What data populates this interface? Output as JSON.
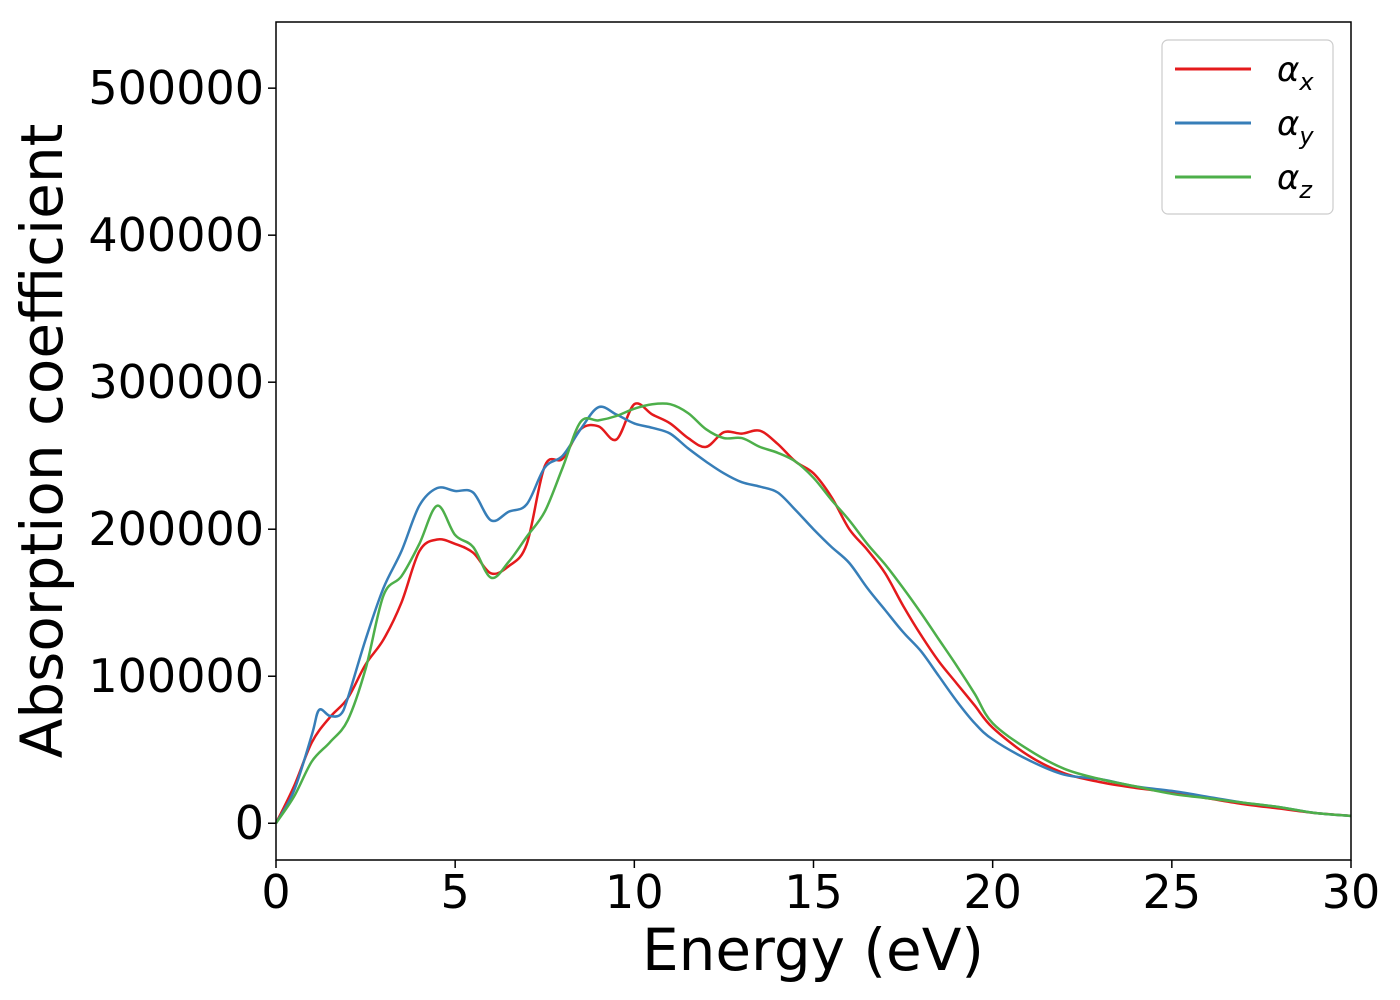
{
  "chart_data": {
    "type": "line",
    "xlabel": "Energy (eV)",
    "ylabel": "Absorption coefficient",
    "xlim": [
      0,
      30
    ],
    "ylim": [
      -25000,
      545000
    ],
    "xticks": [
      0,
      5,
      10,
      15,
      20,
      25,
      30
    ],
    "yticks": [
      0,
      100000,
      200000,
      300000,
      400000,
      500000
    ],
    "grid": false,
    "legend_position": "top-right",
    "legend": [
      {
        "symbol": "α",
        "subscript": "x"
      },
      {
        "symbol": "α",
        "subscript": "y"
      },
      {
        "symbol": "α",
        "subscript": "z"
      }
    ],
    "series": [
      {
        "name": "αx",
        "color": "#e41a1c",
        "x": [
          0,
          0.5,
          1.0,
          1.5,
          2.0,
          2.5,
          3.0,
          3.5,
          4.0,
          4.5,
          5.0,
          5.5,
          6.0,
          6.5,
          7.0,
          7.5,
          8.0,
          8.5,
          9.0,
          9.5,
          10.0,
          10.5,
          11.0,
          11.5,
          12.0,
          12.5,
          13.0,
          13.5,
          14.0,
          14.5,
          15.0,
          15.5,
          16.0,
          16.5,
          17.0,
          17.5,
          18.0,
          18.5,
          19.0,
          19.5,
          20.0,
          21.0,
          22.0,
          23.0,
          24.0,
          25.0,
          26.0,
          27.0,
          28.0,
          29.0,
          30.0
        ],
        "y": [
          0,
          25000,
          55000,
          72000,
          85000,
          108000,
          125000,
          150000,
          185000,
          193000,
          190000,
          184000,
          170000,
          175000,
          190000,
          243000,
          248000,
          268000,
          270000,
          261000,
          285000,
          278000,
          272000,
          262000,
          256000,
          266000,
          265000,
          267000,
          258000,
          246000,
          238000,
          222000,
          200000,
          186000,
          170000,
          148000,
          128000,
          110000,
          95000,
          80000,
          65000,
          46000,
          34000,
          28000,
          24000,
          21000,
          17000,
          13000,
          10000,
          7000,
          5000
        ]
      },
      {
        "name": "αy",
        "color": "#377eb8",
        "x": [
          0,
          0.5,
          1.0,
          1.2,
          1.5,
          1.8,
          2.0,
          2.5,
          3.0,
          3.5,
          4.0,
          4.5,
          5.0,
          5.5,
          6.0,
          6.5,
          7.0,
          7.5,
          8.0,
          8.5,
          9.0,
          9.5,
          10.0,
          10.5,
          11.0,
          11.5,
          12.0,
          12.5,
          13.0,
          13.5,
          14.0,
          14.5,
          15.0,
          15.5,
          16.0,
          16.5,
          17.0,
          17.5,
          18.0,
          18.5,
          19.0,
          19.5,
          20.0,
          21.0,
          22.0,
          23.0,
          24.0,
          25.0,
          26.0,
          27.0,
          28.0,
          29.0,
          30.0
        ],
        "y": [
          0,
          22000,
          60000,
          77000,
          73000,
          74000,
          85000,
          125000,
          160000,
          185000,
          216000,
          228000,
          226000,
          225000,
          206000,
          212000,
          217000,
          242000,
          250000,
          268000,
          283000,
          278000,
          272000,
          269000,
          265000,
          255000,
          246000,
          238000,
          232000,
          229000,
          225000,
          213000,
          200000,
          188000,
          177000,
          160000,
          145000,
          130000,
          117000,
          100000,
          83000,
          68000,
          57000,
          43000,
          33000,
          30000,
          25000,
          22000,
          18000,
          14000,
          11000,
          7000,
          5000
        ]
      },
      {
        "name": "αz",
        "color": "#4daf4a",
        "x": [
          0,
          0.5,
          1.0,
          1.5,
          2.0,
          2.5,
          3.0,
          3.5,
          4.0,
          4.5,
          5.0,
          5.5,
          6.0,
          6.5,
          7.0,
          7.5,
          8.0,
          8.5,
          9.0,
          9.5,
          10.0,
          10.5,
          11.0,
          11.5,
          12.0,
          12.5,
          13.0,
          13.5,
          14.0,
          14.5,
          15.0,
          15.5,
          16.0,
          16.5,
          17.0,
          17.5,
          18.0,
          18.5,
          19.0,
          19.5,
          20.0,
          21.0,
          22.0,
          23.0,
          24.0,
          25.0,
          26.0,
          27.0,
          28.0,
          29.0,
          30.0
        ],
        "y": [
          0,
          18000,
          42000,
          55000,
          70000,
          105000,
          155000,
          168000,
          190000,
          216000,
          196000,
          188000,
          167000,
          178000,
          195000,
          212000,
          242000,
          273000,
          274000,
          277000,
          282000,
          285000,
          285000,
          279000,
          268000,
          262000,
          262000,
          256000,
          252000,
          246000,
          235000,
          220000,
          206000,
          190000,
          176000,
          160000,
          143000,
          125000,
          107000,
          88000,
          68000,
          50000,
          37000,
          30000,
          25000,
          20000,
          17000,
          14000,
          11000,
          7000,
          5000
        ]
      }
    ]
  }
}
